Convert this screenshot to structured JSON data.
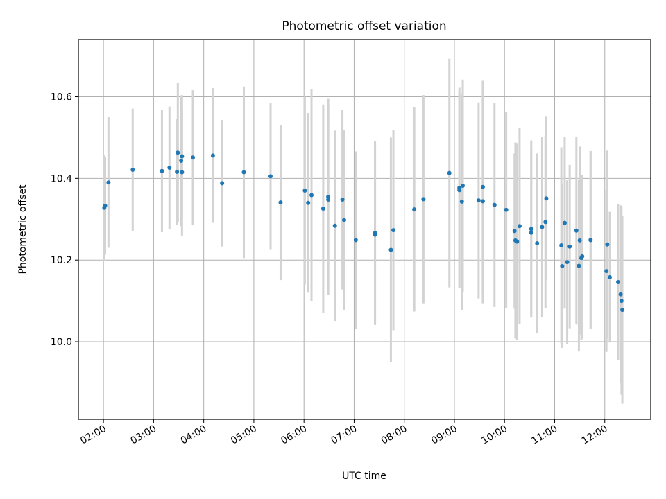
{
  "chart_data": {
    "type": "scatter",
    "title": "Photometric offset variation",
    "xlabel": "UTC time",
    "ylabel": "Photometric offset",
    "xlim": [
      "01:30",
      "12:55"
    ],
    "ylim": [
      9.81,
      10.74
    ],
    "grid": true,
    "x_ticks": [
      "02:00",
      "03:00",
      "04:00",
      "05:00",
      "06:00",
      "07:00",
      "08:00",
      "09:00",
      "10:00",
      "11:00",
      "12:00"
    ],
    "y_ticks": [
      "10.0",
      "10.2",
      "10.4",
      "10.6"
    ],
    "y_tick_values": [
      10.0,
      10.2,
      10.4,
      10.6
    ],
    "colors": {
      "points": "#1f77b4",
      "error_bars": "#d3d3d3",
      "grid": "#b0b0b0"
    },
    "series": [
      {
        "x": [
          "02:01",
          "02:02",
          "02:06",
          "02:35",
          "03:10",
          "03:19",
          "03:28",
          "03:29",
          "03:33",
          "03:34",
          "03:34",
          "03:47",
          "04:11",
          "04:22",
          "04:48",
          "05:20",
          "05:32",
          "06:01",
          "06:05",
          "06:09",
          "06:23",
          "06:29",
          "06:29",
          "06:37",
          "06:46",
          "06:48",
          "07:02",
          "07:25",
          "07:25",
          "07:44",
          "07:47",
          "08:12",
          "08:23",
          "08:54",
          "09:06",
          "09:06",
          "09:09",
          "09:10",
          "09:29",
          "09:34",
          "09:34",
          "09:48",
          "10:02",
          "10:12",
          "10:13",
          "10:15",
          "10:18",
          "10:32",
          "10:32",
          "10:39",
          "10:45",
          "10:49",
          "10:50",
          "11:08",
          "11:09",
          "11:12",
          "11:15",
          "11:18",
          "11:26",
          "11:29",
          "11:30",
          "11:32",
          "11:33",
          "11:43",
          "11:43",
          "12:02",
          "12:03",
          "12:06",
          "12:16",
          "12:19",
          "12:20",
          "12:21"
        ],
        "y": [
          10.328,
          10.333,
          10.39,
          10.421,
          10.418,
          10.426,
          10.416,
          10.463,
          10.443,
          10.415,
          10.454,
          10.451,
          10.456,
          10.388,
          10.415,
          10.405,
          10.341,
          10.37,
          10.34,
          10.359,
          10.326,
          10.348,
          10.355,
          10.284,
          10.348,
          10.298,
          10.249,
          10.266,
          10.262,
          10.225,
          10.273,
          10.324,
          10.349,
          10.413,
          10.377,
          10.371,
          10.343,
          10.382,
          10.346,
          10.379,
          10.344,
          10.335,
          10.323,
          10.271,
          10.248,
          10.245,
          10.283,
          10.276,
          10.267,
          10.241,
          10.281,
          10.293,
          10.351,
          10.236,
          10.185,
          10.291,
          10.195,
          10.233,
          10.272,
          10.186,
          10.248,
          10.205,
          10.209,
          10.249,
          10.249,
          10.173,
          10.238,
          10.158,
          10.146,
          10.116,
          10.1,
          10.078
        ],
        "error": [
          0.13,
          0.12,
          0.16,
          0.15,
          0.15,
          0.15,
          0.13,
          0.17,
          0.16,
          0.155,
          0.15,
          0.165,
          0.165,
          0.155,
          0.21,
          0.18,
          0.19,
          0.23,
          0.22,
          0.26,
          0.255,
          0.23,
          0.24,
          0.233,
          0.22,
          0.22,
          0.217,
          0.225,
          0.22,
          0.275,
          0.245,
          0.25,
          0.255,
          0.28,
          0.245,
          0.24,
          0.265,
          0.26,
          0.24,
          0.26,
          0.25,
          0.25,
          0.24,
          0.19,
          0.24,
          0.24,
          0.24,
          0.217,
          0.2,
          0.22,
          0.22,
          0.21,
          0.2,
          0.24,
          0.2,
          0.21,
          0.2,
          0.2,
          0.23,
          0.21,
          0.23,
          0.2,
          0.2,
          0.218,
          0.218,
          0.198,
          0.23,
          0.16,
          0.19,
          0.218,
          0.23,
          0.23
        ]
      }
    ]
  }
}
